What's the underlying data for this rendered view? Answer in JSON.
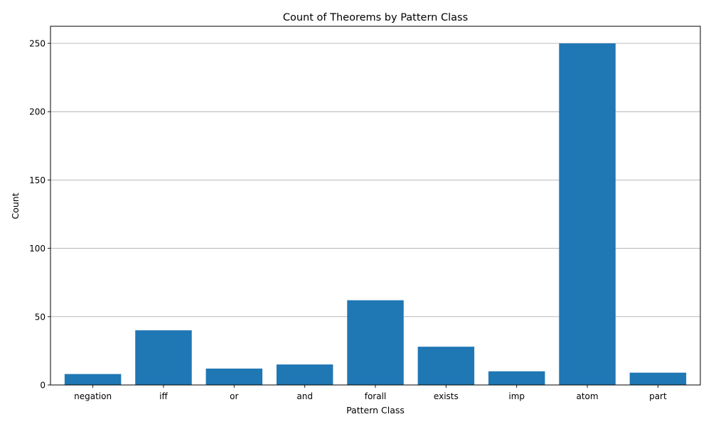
{
  "chart_data": {
    "type": "bar",
    "title": "Count of Theorems by Pattern Class",
    "xlabel": "Pattern Class",
    "ylabel": "Count",
    "categories": [
      "negation",
      "iff",
      "or",
      "and",
      "forall",
      "exists",
      "imp",
      "atom",
      "part"
    ],
    "values": [
      8,
      40,
      12,
      15,
      62,
      28,
      10,
      250,
      9
    ],
    "ylim": [
      0,
      262.5
    ],
    "yticks": [
      0,
      50,
      100,
      150,
      200,
      250
    ],
    "grid": "horizontal",
    "bar_color": "#1f77b4",
    "grid_color": "#b0b0b0"
  }
}
